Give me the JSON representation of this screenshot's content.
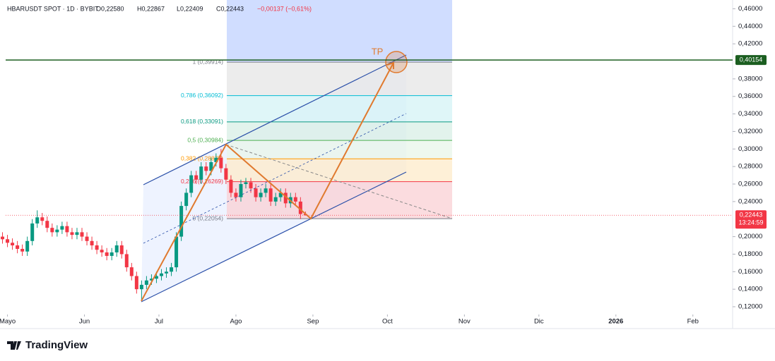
{
  "chart_data": {
    "type": "candlestick",
    "header": {
      "symbol": "HBARUSDT SPOT · 1D · BYBIT",
      "open": "O0,22580",
      "high": "H0,22867",
      "low": "L0,22409",
      "close": "C0,22443",
      "change": "−0,00137 (−0,61%)"
    },
    "x": [
      0,
      2,
      4,
      6,
      8,
      10,
      12,
      14,
      16,
      18,
      20,
      22,
      24,
      26,
      28,
      30,
      32,
      34,
      36,
      38,
      40,
      42,
      44,
      46,
      48,
      50,
      52,
      54,
      56,
      58,
      60,
      62,
      64,
      66,
      68,
      70,
      72,
      74,
      76,
      78,
      80,
      82,
      84,
      86,
      88,
      90,
      92,
      94,
      96,
      98,
      100,
      102,
      104,
      106,
      108,
      110,
      112,
      114,
      116,
      118,
      120,
      122
    ],
    "open": [
      0.2,
      0.197,
      0.193,
      0.19,
      0.186,
      0.183,
      0.195,
      0.215,
      0.222,
      0.218,
      0.21,
      0.205,
      0.208,
      0.212,
      0.205,
      0.202,
      0.205,
      0.2,
      0.195,
      0.19,
      0.185,
      0.182,
      0.178,
      0.182,
      0.19,
      0.18,
      0.165,
      0.155,
      0.14,
      0.145,
      0.15,
      0.152,
      0.155,
      0.158,
      0.16,
      0.165,
      0.2,
      0.235,
      0.25,
      0.27,
      0.265,
      0.28,
      0.275,
      0.285,
      0.29,
      0.278,
      0.265,
      0.25,
      0.245,
      0.26,
      0.262,
      0.255,
      0.245,
      0.25,
      0.255,
      0.24,
      0.245,
      0.25,
      0.238,
      0.245,
      0.24,
      0.2258
    ],
    "high": [
      0.205,
      0.202,
      0.198,
      0.195,
      0.191,
      0.2,
      0.22,
      0.23,
      0.227,
      0.223,
      0.215,
      0.213,
      0.217,
      0.217,
      0.21,
      0.21,
      0.21,
      0.205,
      0.2,
      0.195,
      0.19,
      0.187,
      0.187,
      0.195,
      0.195,
      0.185,
      0.17,
      0.16,
      0.15,
      0.155,
      0.157,
      0.16,
      0.163,
      0.165,
      0.17,
      0.205,
      0.24,
      0.255,
      0.275,
      0.275,
      0.285,
      0.285,
      0.29,
      0.295,
      0.3,
      0.283,
      0.27,
      0.255,
      0.265,
      0.267,
      0.267,
      0.26,
      0.255,
      0.26,
      0.26,
      0.25,
      0.255,
      0.255,
      0.25,
      0.25,
      0.245,
      0.22867
    ],
    "low": [
      0.192,
      0.188,
      0.185,
      0.181,
      0.178,
      0.178,
      0.19,
      0.21,
      0.213,
      0.205,
      0.2,
      0.2,
      0.203,
      0.2,
      0.197,
      0.197,
      0.195,
      0.19,
      0.185,
      0.18,
      0.177,
      0.173,
      0.173,
      0.177,
      0.175,
      0.16,
      0.15,
      0.135,
      0.127,
      0.14,
      0.145,
      0.147,
      0.15,
      0.153,
      0.155,
      0.16,
      0.195,
      0.23,
      0.245,
      0.26,
      0.26,
      0.27,
      0.27,
      0.28,
      0.273,
      0.26,
      0.245,
      0.24,
      0.24,
      0.255,
      0.25,
      0.24,
      0.24,
      0.245,
      0.235,
      0.235,
      0.24,
      0.233,
      0.233,
      0.235,
      0.22,
      0.22409
    ],
    "close": [
      0.197,
      0.193,
      0.19,
      0.186,
      0.183,
      0.195,
      0.215,
      0.222,
      0.218,
      0.21,
      0.205,
      0.208,
      0.212,
      0.205,
      0.202,
      0.205,
      0.2,
      0.195,
      0.19,
      0.185,
      0.182,
      0.178,
      0.182,
      0.19,
      0.18,
      0.165,
      0.155,
      0.14,
      0.145,
      0.15,
      0.152,
      0.155,
      0.158,
      0.16,
      0.165,
      0.2,
      0.235,
      0.25,
      0.27,
      0.265,
      0.28,
      0.275,
      0.285,
      0.29,
      0.278,
      0.265,
      0.25,
      0.245,
      0.26,
      0.262,
      0.255,
      0.245,
      0.25,
      0.255,
      0.24,
      0.245,
      0.25,
      0.238,
      0.245,
      0.24,
      0.2258,
      0.22443
    ],
    "up_color": "#089981",
    "down_color": "#f23645",
    "xlim": [
      -1,
      294
    ],
    "xticks": [
      {
        "value": 2,
        "label": "Mayo"
      },
      {
        "value": 33,
        "label": "Jun"
      },
      {
        "value": 63,
        "label": "Jul"
      },
      {
        "value": 94,
        "label": "Ago"
      },
      {
        "value": 125,
        "label": "Sep"
      },
      {
        "value": 155,
        "label": "Oct"
      },
      {
        "value": 186,
        "label": "Nov"
      },
      {
        "value": 216,
        "label": "Dic"
      },
      {
        "value": 247,
        "label": "2026"
      },
      {
        "value": 278,
        "label": "Feb"
      }
    ],
    "ylim": [
      0.116,
      0.47
    ],
    "yticks": [
      {
        "value": 0.46,
        "label": "0,46000"
      },
      {
        "value": 0.44,
        "label": "0,44000"
      },
      {
        "value": 0.42,
        "label": "0,42000"
      },
      {
        "value": 0.38,
        "label": "0,38000"
      },
      {
        "value": 0.36,
        "label": "0,36000"
      },
      {
        "value": 0.34,
        "label": "0,34000"
      },
      {
        "value": 0.32,
        "label": "0,32000"
      },
      {
        "value": 0.3,
        "label": "0,30000"
      },
      {
        "value": 0.28,
        "label": "0,28000"
      },
      {
        "value": 0.26,
        "label": "0,26000"
      },
      {
        "value": 0.24,
        "label": "0,24000"
      },
      {
        "value": 0.2,
        "label": "0,20000"
      },
      {
        "value": 0.18,
        "label": "0,18000"
      },
      {
        "value": 0.16,
        "label": "0,16000"
      },
      {
        "value": 0.14,
        "label": "0,14000"
      },
      {
        "value": 0.12,
        "label": "0,12000"
      }
    ],
    "horizontal_line": {
      "value": 0.40154,
      "label": "0,40154",
      "color": "#1b5e20"
    },
    "last_price": {
      "value": 0.22443,
      "label": "0,22443",
      "countdown": "13:24:59",
      "color": "#f23645"
    },
    "fib_levels": [
      {
        "price": 0.39914,
        "label": "1 (0,39914)",
        "color": "#787b86",
        "fill": "#e6e6e6"
      },
      {
        "price": 0.36092,
        "label": "0,786 (0,36092)",
        "color": "#00bcd4",
        "fill": "#d4f3f6"
      },
      {
        "price": 0.33091,
        "label": "0,618 (0,33091)",
        "color": "#089981",
        "fill": "#d8efe6"
      },
      {
        "price": 0.30984,
        "label": "0,5 (0,30984)",
        "color": "#4caf50",
        "fill": "#e8f5e9"
      },
      {
        "price": 0.28877,
        "label": "0,382 (0,28877)",
        "color": "#ff9800",
        "fill": "#fdebc9"
      },
      {
        "price": 0.26269,
        "label": "0,236 (0,26269)",
        "color": "#f23645",
        "fill": "#f9d0d4"
      },
      {
        "price": 0.22054,
        "label": "0 (0,22054)",
        "color": "#787b86",
        "fill": "#f9d0d4"
      }
    ],
    "annotation": "TP",
    "brand": "TradingView"
  }
}
